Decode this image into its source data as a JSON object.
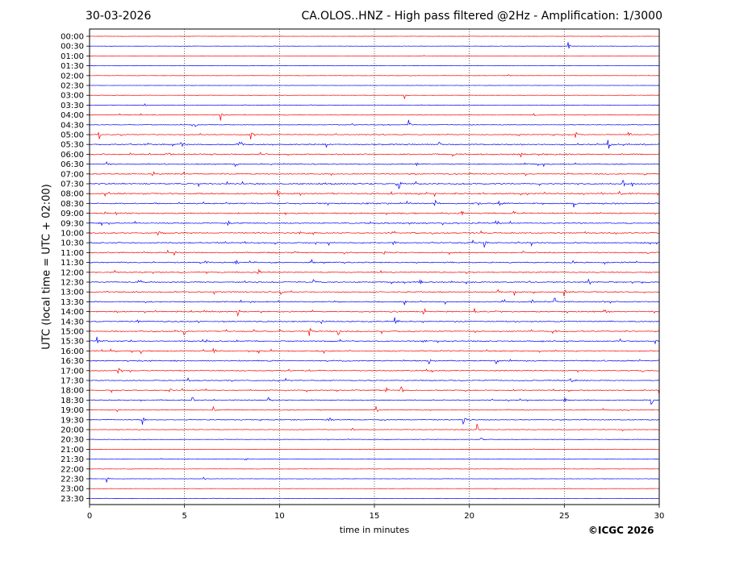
{
  "header": {
    "date": "30-03-2026",
    "title": "CA.OLOS..HNZ - High pass filtered @2Hz - Amplification: 1/3000"
  },
  "footer": {
    "copyright": "©ICGC 2026"
  },
  "colors": {
    "trace_a": "#ff0000",
    "trace_b": "#0000ff",
    "frame": "#000000",
    "grid": "#000000"
  },
  "chart_data": {
    "type": "line",
    "subtype": "helicorder",
    "xlabel": "time in minutes",
    "ylabel": "UTC (local time = UTC + 02:00)",
    "xlim": [
      0,
      30
    ],
    "x_ticks": [
      0,
      5,
      10,
      15,
      20,
      25,
      30
    ],
    "vertical_gridlines": [
      5,
      10,
      15,
      20,
      25
    ],
    "grid": "vertical dotted",
    "rows": [
      "00:00",
      "00:30",
      "01:00",
      "01:30",
      "02:00",
      "02:30",
      "03:00",
      "03:30",
      "04:00",
      "04:30",
      "05:00",
      "05:30",
      "06:00",
      "06:30",
      "07:00",
      "07:30",
      "08:00",
      "08:30",
      "09:00",
      "09:30",
      "10:00",
      "10:30",
      "11:00",
      "11:30",
      "12:00",
      "12:30",
      "13:00",
      "13:30",
      "14:00",
      "14:30",
      "15:00",
      "15:30",
      "16:00",
      "16:30",
      "17:00",
      "17:30",
      "18:00",
      "18:30",
      "19:00",
      "19:30",
      "20:00",
      "20:30",
      "21:00",
      "21:30",
      "22:00",
      "22:30",
      "23:00",
      "23:30"
    ],
    "row_colors": "alternating red / blue",
    "noise_level_by_row": [
      0.2,
      0.2,
      0.2,
      0.2,
      0.2,
      0.2,
      0.25,
      0.3,
      0.45,
      0.4,
      0.6,
      0.75,
      0.8,
      0.7,
      0.7,
      0.85,
      0.9,
      0.85,
      0.85,
      0.8,
      0.8,
      0.8,
      0.8,
      0.75,
      0.75,
      0.75,
      0.75,
      0.75,
      0.75,
      0.75,
      0.75,
      0.75,
      0.75,
      0.75,
      0.7,
      0.65,
      0.65,
      0.6,
      0.55,
      0.55,
      0.45,
      0.35,
      0.25,
      0.25,
      0.25,
      0.25,
      0.2,
      0.2
    ],
    "events": [
      {
        "row": "00:30",
        "minute": 25.2,
        "amplitude": 1.2
      },
      {
        "row": "02:00",
        "minute": 22.0,
        "amplitude": 0.6
      },
      {
        "row": "03:00",
        "minute": 16.6,
        "amplitude": 1.0
      },
      {
        "row": "03:30",
        "minute": 2.9,
        "amplitude": 0.6
      },
      {
        "row": "04:00",
        "minute": 2.7,
        "amplitude": 0.6
      },
      {
        "row": "04:00",
        "minute": 6.9,
        "amplitude": 1.5
      },
      {
        "row": "04:00",
        "minute": 23.4,
        "amplitude": 0.8
      },
      {
        "row": "04:30",
        "minute": 5.6,
        "amplitude": 0.6
      },
      {
        "row": "04:30",
        "minute": 13.8,
        "amplitude": 0.8
      },
      {
        "row": "04:30",
        "minute": 16.8,
        "amplitude": 1.3
      },
      {
        "row": "05:00",
        "minute": 0.5,
        "amplitude": 1.4
      },
      {
        "row": "05:00",
        "minute": 8.5,
        "amplitude": 1.2
      },
      {
        "row": "05:00",
        "minute": 25.6,
        "amplitude": 1.5
      },
      {
        "row": "05:00",
        "minute": 28.4,
        "amplitude": 1.3
      },
      {
        "row": "05:30",
        "minute": 4.8,
        "amplitude": 1.6
      },
      {
        "row": "05:30",
        "minute": 7.9,
        "amplitude": 1.7
      },
      {
        "row": "05:30",
        "minute": 18.4,
        "amplitude": 1.2
      },
      {
        "row": "05:30",
        "minute": 27.3,
        "amplitude": 1.8
      },
      {
        "row": "06:00",
        "minute": 4.2,
        "amplitude": 1.0
      },
      {
        "row": "06:00",
        "minute": 19.1,
        "amplitude": 0.9
      },
      {
        "row": "06:00",
        "minute": 22.7,
        "amplitude": 1.0
      },
      {
        "row": "06:30",
        "minute": 0.9,
        "amplitude": 1.0
      },
      {
        "row": "06:30",
        "minute": 17.2,
        "amplitude": 0.8
      },
      {
        "row": "07:00",
        "minute": 3.3,
        "amplitude": 2.0
      },
      {
        "row": "07:30",
        "minute": 16.3,
        "amplitude": 1.2
      },
      {
        "row": "07:30",
        "minute": 28.1,
        "amplitude": 1.2
      },
      {
        "row": "08:00",
        "minute": 0.8,
        "amplitude": 1.3
      },
      {
        "row": "08:00",
        "minute": 9.9,
        "amplitude": 1.5
      },
      {
        "row": "08:00",
        "minute": 15.9,
        "amplitude": 1.0
      },
      {
        "row": "08:00",
        "minute": 27.9,
        "amplitude": 1.3
      },
      {
        "row": "08:30",
        "minute": 18.2,
        "amplitude": 1.1
      },
      {
        "row": "08:30",
        "minute": 21.6,
        "amplitude": 1.1
      },
      {
        "row": "08:30",
        "minute": 25.5,
        "amplitude": 1.2
      },
      {
        "row": "09:00",
        "minute": 1.4,
        "amplitude": 1.1
      },
      {
        "row": "09:00",
        "minute": 19.6,
        "amplitude": 1.3
      },
      {
        "row": "09:00",
        "minute": 22.3,
        "amplitude": 1.2
      },
      {
        "row": "09:30",
        "minute": 7.3,
        "amplitude": 1.1
      },
      {
        "row": "09:30",
        "minute": 21.5,
        "amplitude": 1.2
      },
      {
        "row": "10:00",
        "minute": 3.6,
        "amplitude": 1.3
      },
      {
        "row": "10:30",
        "minute": 16.0,
        "amplitude": 1.3
      },
      {
        "row": "10:30",
        "minute": 20.8,
        "amplitude": 1.1
      },
      {
        "row": "11:00",
        "minute": 15.5,
        "amplitude": 1.1
      },
      {
        "row": "11:30",
        "minute": 6.1,
        "amplitude": 1.1
      },
      {
        "row": "11:30",
        "minute": 7.7,
        "amplitude": 1.4
      },
      {
        "row": "11:30",
        "minute": 11.7,
        "amplitude": 1.2
      },
      {
        "row": "12:00",
        "minute": 6.1,
        "amplitude": 1.0
      },
      {
        "row": "12:00",
        "minute": 8.9,
        "amplitude": 1.0
      },
      {
        "row": "12:30",
        "minute": 11.8,
        "amplitude": 1.4
      },
      {
        "row": "12:30",
        "minute": 17.4,
        "amplitude": 1.2
      },
      {
        "row": "12:30",
        "minute": 26.3,
        "amplitude": 1.2
      },
      {
        "row": "13:00",
        "minute": 10.1,
        "amplitude": 1.0
      },
      {
        "row": "13:00",
        "minute": 22.4,
        "amplitude": 1.2
      },
      {
        "row": "13:00",
        "minute": 25.0,
        "amplitude": 1.1
      },
      {
        "row": "13:30",
        "minute": 16.6,
        "amplitude": 1.0
      },
      {
        "row": "13:30",
        "minute": 23.3,
        "amplitude": 1.0
      },
      {
        "row": "13:30",
        "minute": 24.5,
        "amplitude": 1.2
      },
      {
        "row": "14:00",
        "minute": 5.3,
        "amplitude": 1.0
      },
      {
        "row": "14:00",
        "minute": 7.8,
        "amplitude": 1.2
      },
      {
        "row": "14:00",
        "minute": 17.6,
        "amplitude": 1.4
      },
      {
        "row": "14:00",
        "minute": 20.3,
        "amplitude": 1.3
      },
      {
        "row": "14:00",
        "minute": 27.1,
        "amplitude": 1.2
      },
      {
        "row": "14:30",
        "minute": 2.5,
        "amplitude": 1.0
      },
      {
        "row": "14:30",
        "minute": 12.2,
        "amplitude": 1.0
      },
      {
        "row": "14:30",
        "minute": 16.1,
        "amplitude": 1.0
      },
      {
        "row": "15:00",
        "minute": 5.0,
        "amplitude": 1.0
      },
      {
        "row": "15:00",
        "minute": 7.2,
        "amplitude": 1.2
      },
      {
        "row": "15:00",
        "minute": 11.6,
        "amplitude": 1.3
      },
      {
        "row": "15:00",
        "minute": 13.1,
        "amplitude": 1.2
      },
      {
        "row": "15:30",
        "minute": 0.4,
        "amplitude": 1.1
      },
      {
        "row": "15:30",
        "minute": 17.6,
        "amplitude": 1.1
      },
      {
        "row": "15:30",
        "minute": 29.8,
        "amplitude": 1.5
      },
      {
        "row": "16:00",
        "minute": 2.7,
        "amplitude": 1.0
      },
      {
        "row": "16:00",
        "minute": 6.5,
        "amplitude": 1.1
      },
      {
        "row": "16:30",
        "minute": 21.4,
        "amplitude": 1.1
      },
      {
        "row": "16:30",
        "minute": 17.9,
        "amplitude": 0.8
      },
      {
        "row": "17:00",
        "minute": 1.5,
        "amplitude": 1.1
      },
      {
        "row": "17:00",
        "minute": 29.1,
        "amplitude": 1.0
      },
      {
        "row": "17:30",
        "minute": 5.2,
        "amplitude": 1.0
      },
      {
        "row": "17:30",
        "minute": 25.3,
        "amplitude": 1.1
      },
      {
        "row": "18:00",
        "minute": 4.2,
        "amplitude": 1.1
      },
      {
        "row": "18:00",
        "minute": 15.6,
        "amplitude": 1.2
      },
      {
        "row": "18:00",
        "minute": 16.4,
        "amplitude": 1.1
      },
      {
        "row": "18:00",
        "minute": 30.0,
        "amplitude": 1.3
      },
      {
        "row": "18:30",
        "minute": 5.4,
        "amplitude": 1.0
      },
      {
        "row": "18:30",
        "minute": 9.4,
        "amplitude": 1.0
      },
      {
        "row": "18:30",
        "minute": 25.0,
        "amplitude": 1.1
      },
      {
        "row": "18:30",
        "minute": 29.6,
        "amplitude": 1.3
      },
      {
        "row": "19:00",
        "minute": 6.5,
        "amplitude": 1.1
      },
      {
        "row": "19:00",
        "minute": 15.1,
        "amplitude": 1.0
      },
      {
        "row": "19:30",
        "minute": 2.8,
        "amplitude": 1.3
      },
      {
        "row": "19:30",
        "minute": 12.6,
        "amplitude": 1.1
      },
      {
        "row": "19:30",
        "minute": 19.7,
        "amplitude": 1.3
      },
      {
        "row": "20:00",
        "minute": 13.8,
        "amplitude": 1.0
      },
      {
        "row": "20:00",
        "minute": 20.4,
        "amplitude": 1.5
      },
      {
        "row": "20:30",
        "minute": 20.6,
        "amplitude": 0.7
      },
      {
        "row": "21:30",
        "minute": 8.2,
        "amplitude": 1.3
      },
      {
        "row": "22:30",
        "minute": 0.9,
        "amplitude": 1.1
      },
      {
        "row": "22:30",
        "minute": 6.0,
        "amplitude": 0.6
      }
    ]
  }
}
